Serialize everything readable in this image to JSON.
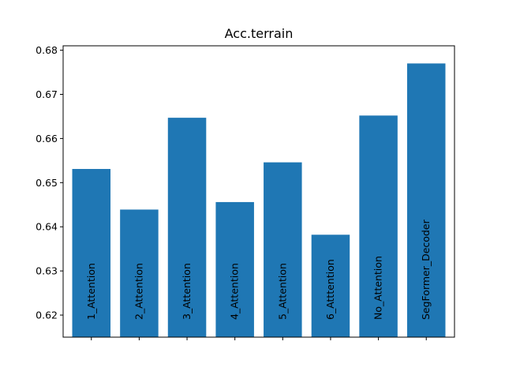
{
  "chart_data": {
    "type": "bar",
    "title": "Acc.terrain",
    "xlabel": "",
    "ylabel": "",
    "categories": [
      "1_Attention",
      "2_Attention",
      "3_Attention",
      "4_Attention",
      "5_Attention",
      "6_Atttention",
      "No_Attention",
      "SegFormer_Decoder"
    ],
    "values": [
      0.6531,
      0.6439,
      0.6647,
      0.6456,
      0.6546,
      0.6382,
      0.6652,
      0.677
    ],
    "ylim": [
      0.615,
      0.681
    ],
    "yticks": [
      "0.62",
      "0.63",
      "0.64",
      "0.65",
      "0.66",
      "0.67",
      "0.68"
    ],
    "bar_color": "#1f77b4",
    "grid": false,
    "category_labels_placement": "inside-bars-rotated"
  }
}
